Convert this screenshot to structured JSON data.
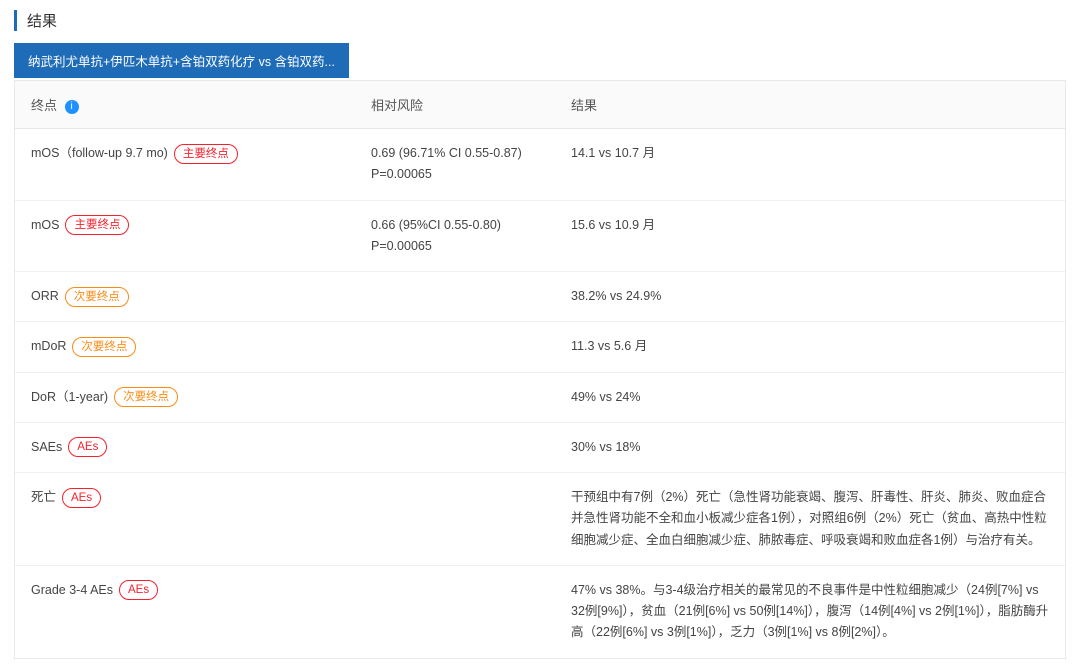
{
  "section_title": "结果",
  "tab_label": "纳武利尤单抗+伊匹木单抗+含铂双药化疗 vs 含铂双药...",
  "columns": {
    "endpoint": "终点",
    "risk": "相对风险",
    "result": "结果"
  },
  "info_icon_title": "信息",
  "badge_labels": {
    "primary": "主要终点",
    "secondary": "次要终点",
    "ae": "AEs"
  },
  "rows": [
    {
      "endpoint": "mOS（follow-up 9.7 mo)",
      "badge": "primary",
      "risk_l1": "0.69 (96.71% CI 0.55-0.87)",
      "risk_l2": "P=0.00065",
      "result": "14.1 vs 10.7 月"
    },
    {
      "endpoint": "mOS",
      "badge": "primary",
      "risk_l1": "0.66 (95%CI 0.55-0.80)",
      "risk_l2": "P=0.00065",
      "result": "15.6 vs 10.9 月"
    },
    {
      "endpoint": "ORR",
      "badge": "secondary",
      "risk_l1": "",
      "risk_l2": "",
      "result": "38.2% vs 24.9%"
    },
    {
      "endpoint": "mDoR",
      "badge": "secondary",
      "risk_l1": "",
      "risk_l2": "",
      "result": "11.3 vs 5.6 月"
    },
    {
      "endpoint": "DoR（1-year)",
      "badge": "secondary",
      "risk_l1": "",
      "risk_l2": "",
      "result": "49% vs 24%"
    },
    {
      "endpoint": "SAEs",
      "badge": "ae",
      "risk_l1": "",
      "risk_l2": "",
      "result": "30% vs 18%"
    },
    {
      "endpoint": "死亡",
      "badge": "ae",
      "risk_l1": "",
      "risk_l2": "",
      "result": "干预组中有7例（2%）死亡（急性肾功能衰竭、腹泻、肝毒性、肝炎、肺炎、败血症合并急性肾功能不全和血小板减少症各1例），对照组6例（2%）死亡（贫血、高热中性粒细胞减少症、全血白细胞减少症、肺脓毒症、呼吸衰竭和败血症各1例）与治疗有关。"
    },
    {
      "endpoint": "Grade 3-4 AEs",
      "badge": "ae",
      "risk_l1": "",
      "risk_l2": "",
      "result": "47% vs 38%。与3-4级治疗相关的最常见的不良事件是中性粒细胞减少（24例[7%] vs 32例[9%]），贫血（21例[6%] vs 50例[14%]），腹泻（14例[4%] vs 2例[1%]），脂肪酶升高（22例[6%] vs 3例[1%]），乏力（3例[1%] vs 8例[2%]）。"
    }
  ]
}
